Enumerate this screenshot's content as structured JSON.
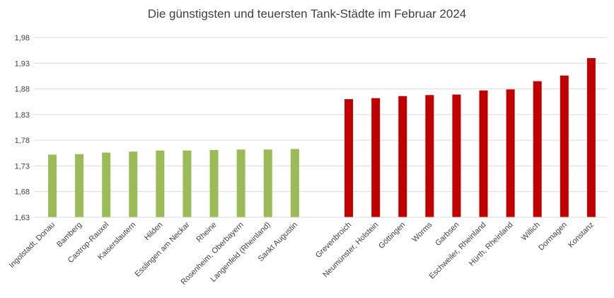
{
  "chart_data": {
    "type": "bar",
    "title": "Die günstigsten und teuersten Tank-Städte im Februar 2024",
    "xlabel": "",
    "ylabel": "",
    "ylim": [
      1.63,
      1.98
    ],
    "yticks": [
      "1,63",
      "1,68",
      "1,73",
      "1,78",
      "1,83",
      "1,88",
      "1,93",
      "1,98"
    ],
    "grid": true,
    "legend": "none",
    "colors": {
      "cheap": "#9bbb59",
      "expensive": "#c00000",
      "grid": "#d9d9d9",
      "text": "#404040"
    },
    "categories": [
      "Ingolstadt, Donau",
      "Bamberg",
      "Castrop-Rauxel",
      "Kaiserslautern",
      "Hilden",
      "Esslingen am Neckar",
      "Rheine",
      "Rosenheim, Oberbayern",
      "Langenfeld (Rheinland)",
      "Sankt Augustin",
      "",
      "Grevenbroich",
      "Neumünster, Holstein",
      "Göttingen",
      "Worms",
      "Garbsen",
      "Eschweiler, Rheinland",
      "Hürth, Rheinland",
      "Willich",
      "Dormagen",
      "Konstanz"
    ],
    "values": [
      1.752,
      1.753,
      1.756,
      1.758,
      1.76,
      1.76,
      1.761,
      1.762,
      1.762,
      1.763,
      null,
      1.86,
      1.862,
      1.866,
      1.868,
      1.869,
      1.877,
      1.879,
      1.895,
      1.906,
      1.94
    ],
    "bar_groups": [
      "cheap",
      "cheap",
      "cheap",
      "cheap",
      "cheap",
      "cheap",
      "cheap",
      "cheap",
      "cheap",
      "cheap",
      "gap",
      "expensive",
      "expensive",
      "expensive",
      "expensive",
      "expensive",
      "expensive",
      "expensive",
      "expensive",
      "expensive",
      "expensive"
    ]
  }
}
